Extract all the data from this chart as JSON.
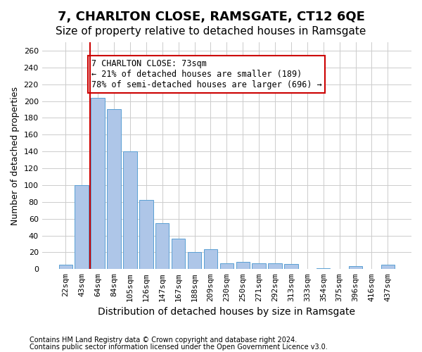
{
  "title": "7, CHARLTON CLOSE, RAMSGATE, CT12 6QE",
  "subtitle": "Size of property relative to detached houses in Ramsgate",
  "xlabel": "Distribution of detached houses by size in Ramsgate",
  "ylabel": "Number of detached properties",
  "bar_labels": [
    "22sqm",
    "43sqm",
    "64sqm",
    "84sqm",
    "105sqm",
    "126sqm",
    "147sqm",
    "167sqm",
    "188sqm",
    "209sqm",
    "230sqm",
    "250sqm",
    "271sqm",
    "292sqm",
    "313sqm",
    "333sqm",
    "354sqm",
    "375sqm",
    "396sqm",
    "416sqm",
    "437sqm"
  ],
  "bar_values": [
    5,
    100,
    204,
    190,
    140,
    82,
    55,
    36,
    20,
    24,
    7,
    9,
    7,
    7,
    6,
    0,
    1,
    0,
    4,
    0,
    5
  ],
  "bar_color": "#aec6e8",
  "bar_edgecolor": "#5a9fd4",
  "vline_x": 1,
  "vline_color": "#cc0000",
  "annotation_text": "7 CHARLTON CLOSE: 73sqm\n← 21% of detached houses are smaller (189)\n78% of semi-detached houses are larger (696) →",
  "annotation_box_color": "#ffffff",
  "annotation_box_edgecolor": "#cc0000",
  "ylim": [
    0,
    270
  ],
  "yticks": [
    0,
    20,
    40,
    60,
    80,
    100,
    120,
    140,
    160,
    180,
    200,
    220,
    240,
    260
  ],
  "grid_color": "#cccccc",
  "background_color": "#ffffff",
  "footer_line1": "Contains HM Land Registry data © Crown copyright and database right 2024.",
  "footer_line2": "Contains public sector information licensed under the Open Government Licence v3.0.",
  "title_fontsize": 13,
  "subtitle_fontsize": 11,
  "xlabel_fontsize": 10,
  "ylabel_fontsize": 9,
  "tick_fontsize": 8,
  "annotation_fontsize": 8.5
}
